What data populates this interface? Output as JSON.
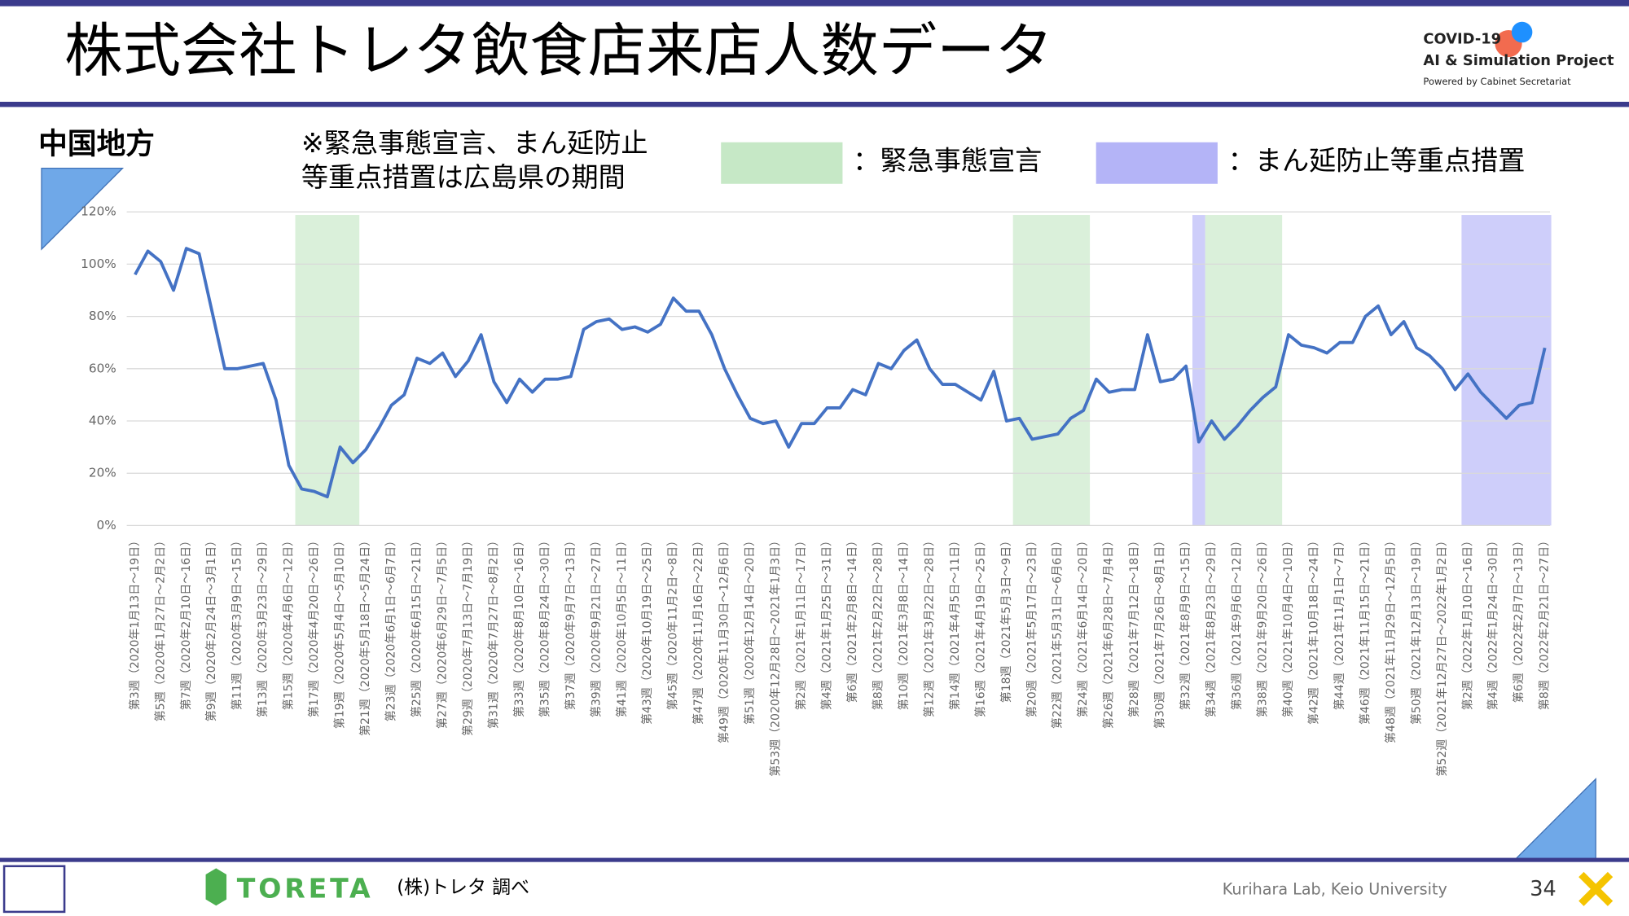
{
  "header": {
    "title": "株式会社トレタ飲食店来店人数データ",
    "logo": [
      "COVID-19",
      "AI & Simulation Project",
      "Powered by Cabinet Secretariat"
    ]
  },
  "region": "中国地方",
  "note": [
    "※緊急事態宣言、まん延防止",
    "等重点措置は広島県の期間"
  ],
  "footer": {
    "brand": "TORETA",
    "source": "(株)トレタ 調べ",
    "lab": "Kurihara Lab, Keio University",
    "page": "34"
  },
  "chart_data": {
    "type": "line",
    "color": "#4472c4",
    "grid": true,
    "ylim": [
      0,
      120
    ],
    "yticks": [
      {
        "value": 0,
        "label": "0%"
      },
      {
        "value": 20,
        "label": "20%"
      },
      {
        "value": 40,
        "label": "40%"
      },
      {
        "value": 60,
        "label": "60%"
      },
      {
        "value": 80,
        "label": "80%"
      },
      {
        "value": 100,
        "label": "100%"
      },
      {
        "value": 120,
        "label": "120%"
      }
    ],
    "legend": [
      {
        "label": "：緊急事態宣言",
        "color": "#c6e8c6"
      },
      {
        "label": "：まん延防止等重点措置",
        "color": "#b4b4f7"
      }
    ],
    "bands": [
      {
        "start": 13,
        "end": 17,
        "legend": 0
      },
      {
        "start": 69,
        "end": 74,
        "legend": 0
      },
      {
        "start": 83,
        "end": 83,
        "legend": 1
      },
      {
        "start": 84,
        "end": 89,
        "legend": 0
      },
      {
        "start": 104,
        "end": 110,
        "legend": 1
      }
    ],
    "categories": [
      "第3週（2020年1月13日～19日）",
      null,
      "第5週（2020年1月27日～2月2日）",
      null,
      "第7週（2020年2月10日～16日）",
      null,
      "第9週（2020年2月24日～3月1日）",
      null,
      "第11週（2020年3月9日～15日）",
      null,
      "第13週（2020年3月23日～29日）",
      null,
      "第15週（2020年4月6日～12日）",
      null,
      "第17週（2020年4月20日～26日）",
      null,
      "第19週（2020年5月4日～5月10日）",
      null,
      "第21週（2020年5月18日～5月24日）",
      null,
      "第23週（2020年6月1日～6月7日）",
      null,
      "第25週（2020年6月15日～21日）",
      null,
      "第27週（2020年6月29日～7月5日）",
      null,
      "第29週（2020年7月13日～7月19日）",
      null,
      "第31週（2020年7月27日～8月2日）",
      null,
      "第33週（2020年8月10日～16日）",
      null,
      "第35週（2020年8月24日～30日）",
      null,
      "第37週（2020年9月7日～13日）",
      null,
      "第39週（2020年9月21日～27日）",
      null,
      "第41週（2020年10月5日～11日）",
      null,
      "第43週（2020年10月19日～25日）",
      null,
      "第45週（2020年11月2日～8日）",
      null,
      "第47週（2020年11月16日～22日）",
      null,
      "第49週（2020年11月30日～12月6日）",
      null,
      "第51週（2020年12月14日～20日）",
      null,
      "第53週（2020年12月28日～2021年1月3日）",
      null,
      "第2週（2021年1月11日～17日）",
      null,
      "第4週（2021年1月25日～31日）",
      null,
      "第6週（2021年2月8日～14日）",
      null,
      "第8週（2021年2月22日～28日）",
      null,
      "第10週（2021年3月8日～14日）",
      null,
      "第12週（2021年3月22日～28日）",
      null,
      "第14週（2021年4月5日～11日）",
      null,
      "第16週（2021年4月19日～25日）",
      null,
      "第18週（2021年5月3日～9日）",
      null,
      "第20週（2021年5月17日～23日）",
      null,
      "第22週（2021年5月31日～6月6日）",
      null,
      "第24週（2021年6月14日～20日）",
      null,
      "第26週（2021年6月28日～7月4日）",
      null,
      "第28週（2021年7月12日～18日）",
      null,
      "第30週（2021年7月26日～8月1日）",
      null,
      "第32週（2021年8月9日～15日）",
      null,
      "第34週（2021年8月23日～29日）",
      null,
      "第36週（2021年9月6日～12日）",
      null,
      "第38週（2021年9月20日～26日）",
      null,
      "第40週（2021年10月4日～10日）",
      null,
      "第42週（2021年10月18日～24日）",
      null,
      "第44週（2021年11月1日～7日）",
      null,
      "第46週（2021年11月15日～21日）",
      null,
      "第48週（2021年11月29日～12月5日）",
      null,
      "第50週（2021年12月13日～19日）",
      null,
      "第52週（2021年12月27日～2022年1月2日）",
      null,
      "第2週（2022年1月10日～16日）",
      null,
      "第4週（2022年1月24日～30日）",
      null,
      "第6週（2022年2月7日～13日）",
      null,
      "第8週（2022年2月21日～27日）"
    ],
    "values": [
      96,
      105,
      101,
      90,
      106,
      104,
      82,
      60,
      60,
      61,
      62,
      48,
      23,
      14,
      13,
      11,
      30,
      24,
      29,
      37,
      46,
      50,
      64,
      62,
      66,
      57,
      63,
      73,
      55,
      47,
      56,
      51,
      56,
      56,
      57,
      75,
      78,
      79,
      75,
      76,
      74,
      77,
      87,
      82,
      82,
      73,
      60,
      50,
      41,
      39,
      40,
      30,
      39,
      39,
      45,
      45,
      52,
      50,
      62,
      60,
      67,
      71,
      60,
      54,
      54,
      51,
      48,
      59,
      40,
      41,
      33,
      34,
      35,
      41,
      44,
      56,
      51,
      52,
      52,
      73,
      55,
      56,
      61,
      32,
      40,
      33,
      38,
      44,
      49,
      53,
      73,
      69,
      68,
      66,
      70,
      70,
      80,
      84,
      73,
      78,
      68,
      65,
      60,
      52,
      58,
      51,
      46,
      41,
      46,
      47,
      68
    ]
  }
}
